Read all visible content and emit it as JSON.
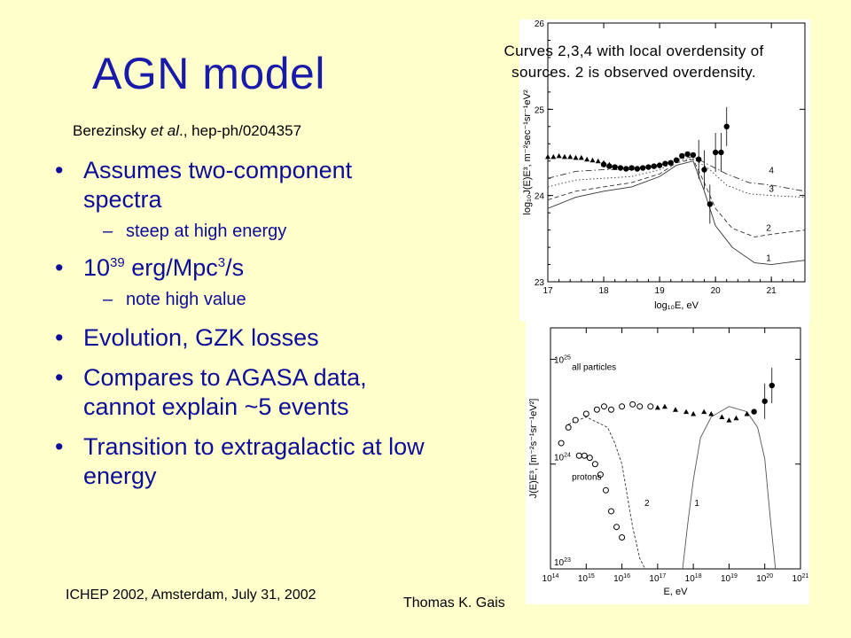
{
  "slide": {
    "title": "AGN model",
    "citation_prefix": "Berezinsky ",
    "citation_italic": "et al",
    "citation_suffix": "., hep-ph/0204357",
    "bullets": [
      {
        "text": "Assumes two-component spectra"
      },
      {
        "sub": "steep at high energy"
      },
      {
        "pre": "10",
        "sup1": "39",
        "mid": " erg/Mpc",
        "sup2": "3",
        "post": "/s"
      },
      {
        "sub": "note high value"
      },
      {
        "text": "Evolution, GZK losses"
      },
      {
        "text": "Compares to AGASA data, cannot explain ~5 events"
      },
      {
        "text": "Transition to extragalactic at low energy"
      }
    ],
    "note_line1": "Curves 2,3,4 with local overdensity of",
    "note_line2": "sources.  2 is observed overdensity.",
    "footer_left": "ICHEP 2002, Amsterdam, July 31, 2002",
    "footer_author": "Thomas K. Gais"
  },
  "chart_data": [
    {
      "type": "line",
      "xlabel": "log₁₀E, eV",
      "ylabel": "log₁₀J(E)E³, m⁻²sec⁻¹sr⁻¹eV²",
      "xlim": [
        17,
        21.6
      ],
      "ylim": [
        23,
        26
      ],
      "x_ticks": [
        "17",
        "18",
        "19",
        "20",
        "21"
      ],
      "y_ticks": [
        "23",
        "24",
        "25",
        "26"
      ],
      "curve_labels": [
        "1",
        "2",
        "3",
        "4"
      ],
      "series": [
        {
          "name": "1",
          "x": [
            17.0,
            17.5,
            18.0,
            18.5,
            19.0,
            19.3,
            19.6,
            19.8,
            20.0,
            20.3,
            20.7,
            21.0,
            21.6
          ],
          "y": [
            23.85,
            23.98,
            24.05,
            24.1,
            24.22,
            24.35,
            24.4,
            24.05,
            23.65,
            23.4,
            23.22,
            23.2,
            23.25
          ]
        },
        {
          "name": "2",
          "x": [
            17.0,
            17.5,
            18.0,
            18.5,
            19.0,
            19.3,
            19.6,
            19.8,
            20.0,
            20.3,
            20.7,
            21.0,
            21.6
          ],
          "y": [
            23.95,
            24.05,
            24.1,
            24.15,
            24.25,
            24.38,
            24.42,
            24.15,
            23.85,
            23.62,
            23.52,
            23.55,
            23.6
          ]
        },
        {
          "name": "3",
          "x": [
            17.0,
            17.5,
            18.0,
            18.5,
            19.0,
            19.3,
            19.6,
            19.9,
            20.2,
            20.6,
            21.0,
            21.6
          ],
          "y": [
            24.1,
            24.18,
            24.2,
            24.22,
            24.3,
            24.4,
            24.43,
            24.3,
            24.12,
            24.02,
            24.0,
            23.98
          ]
        },
        {
          "name": "4",
          "x": [
            17.0,
            17.5,
            18.0,
            18.5,
            19.0,
            19.3,
            19.6,
            19.9,
            20.2,
            20.6,
            21.0,
            21.6
          ],
          "y": [
            24.2,
            24.28,
            24.3,
            24.3,
            24.35,
            24.42,
            24.45,
            24.35,
            24.25,
            24.15,
            24.12,
            24.05
          ]
        },
        {
          "name": "data-triangles",
          "x": [
            17.0,
            17.1,
            17.2,
            17.3,
            17.4,
            17.5,
            17.6,
            17.7,
            17.8,
            17.9,
            18.0,
            18.1
          ],
          "y": [
            24.45,
            24.45,
            24.46,
            24.45,
            24.45,
            24.44,
            24.44,
            24.42,
            24.41,
            24.4,
            24.38,
            24.36
          ]
        },
        {
          "name": "data-circles",
          "x": [
            18.0,
            18.1,
            18.2,
            18.3,
            18.4,
            18.5,
            18.6,
            18.7,
            18.8,
            18.9,
            19.0,
            19.1,
            19.2,
            19.3,
            19.4,
            19.5,
            19.6,
            19.7,
            19.8,
            19.9,
            20.0,
            20.1,
            20.2
          ],
          "y": [
            24.36,
            24.34,
            24.33,
            24.32,
            24.31,
            24.32,
            24.31,
            24.32,
            24.33,
            24.34,
            24.35,
            24.37,
            24.38,
            24.41,
            24.46,
            24.48,
            24.47,
            24.42,
            24.3,
            23.9,
            24.5,
            24.5,
            24.8
          ]
        }
      ]
    },
    {
      "type": "line",
      "xlabel": "E, eV",
      "ylabel": "J(E)E³, [m⁻²s⁻¹sr⁻¹eV²]",
      "xlim": [
        14,
        21
      ],
      "ylim": [
        23,
        25.3
      ],
      "x_tick_exponents": [
        "14",
        "15",
        "16",
        "17",
        "18",
        "19",
        "20",
        "21"
      ],
      "y_tick_exponents": [
        "23",
        "24",
        "25"
      ],
      "annotations": [
        "all particles",
        "protons",
        "1",
        "2"
      ],
      "series": [
        {
          "name": "1",
          "x": [
            17.7,
            17.85,
            18.0,
            18.2,
            18.5,
            19.0,
            19.5,
            19.8,
            20.0,
            20.15,
            20.3
          ],
          "y": [
            23.0,
            23.45,
            23.85,
            24.25,
            24.45,
            24.55,
            24.5,
            24.35,
            24.05,
            23.5,
            23.0
          ]
        },
        {
          "name": "2",
          "x": [
            14.5,
            15.0,
            15.3,
            15.6,
            15.8,
            16.0,
            16.1,
            16.3,
            16.5,
            16.65
          ],
          "y": [
            24.38,
            24.45,
            24.4,
            24.35,
            24.2,
            24.0,
            23.8,
            23.4,
            23.1,
            23.0
          ]
        },
        {
          "name": "all-particles-data",
          "x": [
            14.3,
            14.5,
            14.7,
            15.0,
            15.3,
            15.5,
            15.7,
            16.0,
            16.3,
            16.5,
            16.8,
            17.0,
            17.2,
            17.5,
            17.8,
            18.0,
            18.3,
            18.5,
            18.8,
            19.0,
            19.2,
            19.5,
            19.7,
            20.0,
            20.2
          ],
          "y": [
            24.2,
            24.35,
            24.42,
            24.48,
            24.52,
            24.55,
            24.52,
            24.55,
            24.57,
            24.55,
            24.55,
            24.54,
            24.55,
            24.52,
            24.5,
            24.48,
            24.5,
            24.48,
            24.45,
            24.42,
            24.44,
            24.48,
            24.5,
            24.6,
            24.75
          ]
        },
        {
          "name": "protons-data",
          "x": [
            14.8,
            14.95,
            15.1,
            15.25,
            15.4,
            15.55,
            15.7,
            15.85,
            16.0
          ],
          "y": [
            24.08,
            24.08,
            24.06,
            24.0,
            23.9,
            23.75,
            23.55,
            23.4,
            23.3
          ]
        }
      ]
    }
  ]
}
